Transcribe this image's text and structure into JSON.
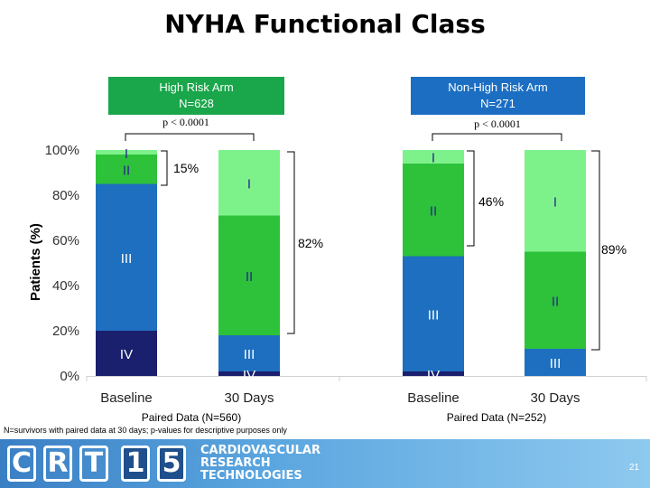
{
  "title": "NYHA Functional Class",
  "arms": [
    {
      "label": "High Risk Arm",
      "n": "N=628",
      "pvalue": "p < 0.0001",
      "paired": "Paired Data (N=560)"
    },
    {
      "label": "Non-High Risk Arm",
      "n": "N=271",
      "pvalue": "p < 0.0001",
      "paired": "Paired Data (N=252)"
    }
  ],
  "colors": {
    "IV": "#1a1f6e",
    "III": "#1e6fbf",
    "II": "#2ec13a",
    "I": "#7df28a",
    "high_arm_box": "#1aa64a",
    "nonhigh_arm_box": "#1b6ec2"
  },
  "chart_data": {
    "type": "bar",
    "stacked": true,
    "ylabel": "Patients (%)",
    "ylim": [
      0,
      100
    ],
    "yticks": [
      "0%",
      "20%",
      "40%",
      "60%",
      "80%",
      "100%"
    ],
    "categories": [
      "Baseline",
      "30 Days",
      "Baseline",
      "30 Days"
    ],
    "series": [
      {
        "name": "IV",
        "values": [
          20,
          2,
          2,
          0
        ]
      },
      {
        "name": "III",
        "values": [
          65,
          16,
          51,
          12
        ]
      },
      {
        "name": "II",
        "values": [
          13,
          53,
          41,
          43
        ]
      },
      {
        "name": "I",
        "values": [
          2,
          29,
          6,
          45
        ]
      }
    ],
    "annotations": [
      "15%",
      "82%",
      "46%",
      "89%"
    ]
  },
  "footnote": "N=survivors with paired data at 30 days; p-values for descriptive purposes only",
  "banner": {
    "letters": [
      "C",
      "R",
      "T",
      "1",
      "5"
    ],
    "text_lines": [
      "CARDIOVASCULAR",
      "RESEARCH",
      "TECHNOLOGIES"
    ],
    "slide_number": "21"
  }
}
